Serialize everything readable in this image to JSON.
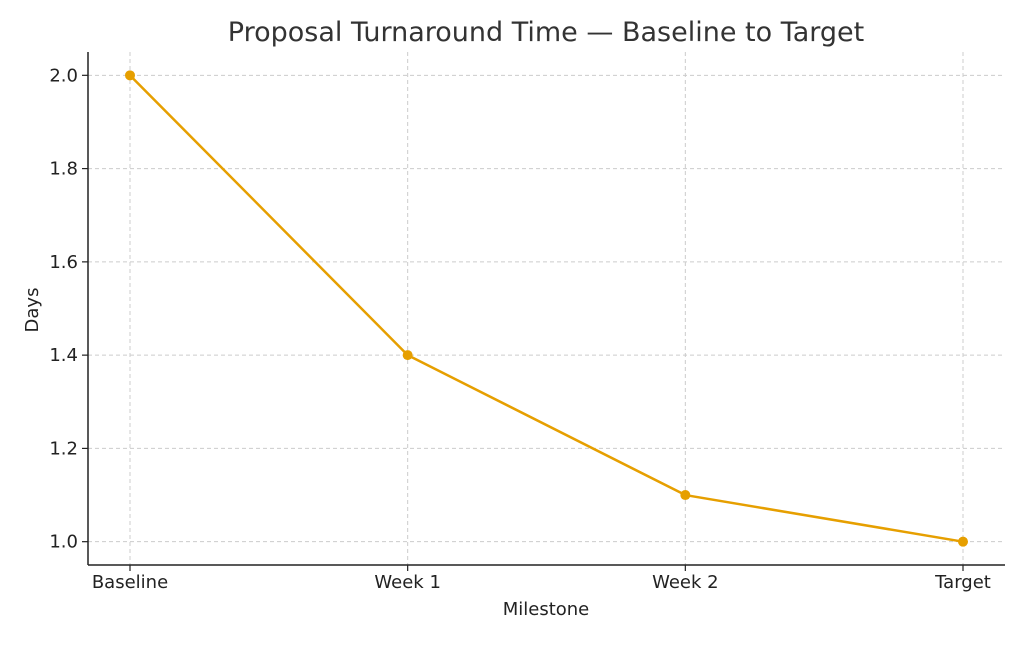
{
  "chart_data": {
    "type": "line",
    "title": "Proposal Turnaround Time — Baseline to Target",
    "xlabel": "Milestone",
    "ylabel": "Days",
    "categories": [
      "Baseline",
      "Week 1",
      "Week 2",
      "Target"
    ],
    "series": [
      {
        "values": [
          2.0,
          1.4,
          1.1,
          1.0
        ],
        "color": "#E69F00"
      }
    ],
    "ylim": [
      0.95,
      2.05
    ],
    "yticks": [
      "1.0",
      "1.2",
      "1.4",
      "1.6",
      "1.8",
      "2.0"
    ],
    "grid": true,
    "marker": "circle"
  }
}
